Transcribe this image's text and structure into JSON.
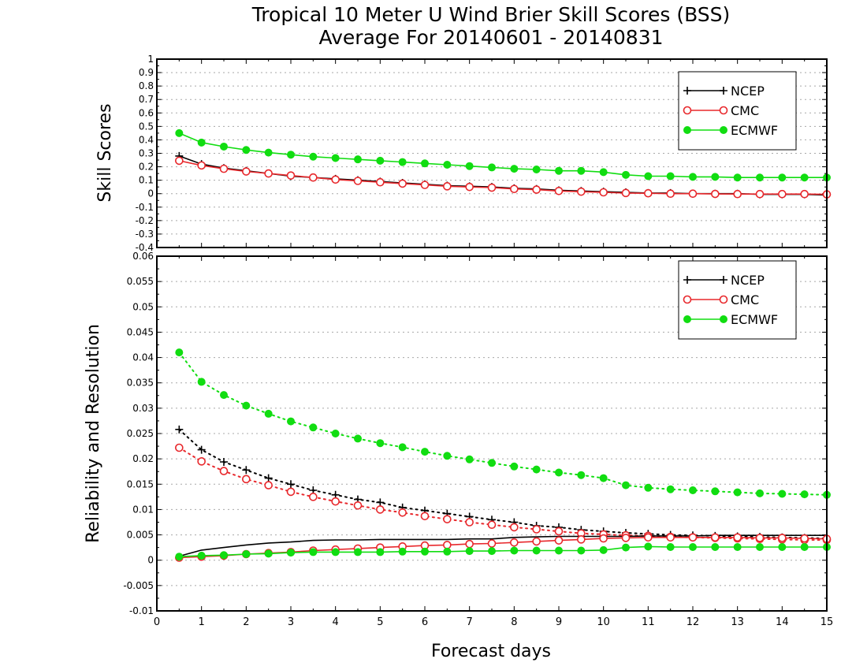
{
  "title_line1": "Tropical 10 Meter U Wind Brier Skill Scores (BSS)",
  "title_line2": "Average For 20140601 - 20140831",
  "xlabel": "Forecast days",
  "chart_data": [
    {
      "type": "line",
      "ylabel": "Skill Scores",
      "ylim": [
        -0.4,
        1
      ],
      "yticks": [
        "1",
        "0.9",
        "0.8",
        "0.7",
        "0.6",
        "0.5",
        "0.4",
        "0.3",
        "0.2",
        "0.1",
        "0",
        "-0.1",
        "-0.2",
        "-0.3",
        "-0.4"
      ],
      "xlim": [
        0,
        15
      ],
      "xticks": [
        "0",
        "1",
        "2",
        "3",
        "4",
        "5",
        "6",
        "7",
        "8",
        "9",
        "10",
        "11",
        "12",
        "13",
        "14",
        "15"
      ],
      "grid": true,
      "legend_position": "top-right",
      "x": [
        0.5,
        1,
        1.5,
        2,
        2.5,
        3,
        3.5,
        4,
        4.5,
        5,
        5.5,
        6,
        6.5,
        7,
        7.5,
        8,
        8.5,
        9,
        9.5,
        10,
        10.5,
        11,
        11.5,
        12,
        12.5,
        13,
        13.5,
        14,
        14.5,
        15
      ],
      "series": [
        {
          "name": "NCEP",
          "color": "#000000",
          "marker": "plus",
          "values": [
            0.28,
            0.22,
            0.19,
            0.17,
            0.15,
            0.13,
            0.12,
            0.11,
            0.1,
            0.09,
            0.08,
            0.07,
            0.06,
            0.055,
            0.05,
            0.04,
            0.035,
            0.025,
            0.02,
            0.015,
            0.01,
            0.005,
            0.005,
            0.0,
            0.0,
            0.0,
            -0.005,
            -0.005,
            -0.005,
            -0.01
          ]
        },
        {
          "name": "CMC",
          "color": "#e8282c",
          "marker": "open-circle",
          "values": [
            0.245,
            0.21,
            0.185,
            0.165,
            0.15,
            0.135,
            0.12,
            0.105,
            0.095,
            0.085,
            0.075,
            0.065,
            0.055,
            0.05,
            0.045,
            0.035,
            0.03,
            0.02,
            0.015,
            0.01,
            0.005,
            0.003,
            0.0,
            0.0,
            -0.002,
            -0.003,
            -0.003,
            -0.003,
            -0.003,
            -0.005
          ]
        },
        {
          "name": "ECMWF",
          "color": "#11dd11",
          "marker": "filled-circle",
          "values": [
            0.45,
            0.38,
            0.35,
            0.325,
            0.305,
            0.29,
            0.275,
            0.265,
            0.255,
            0.245,
            0.235,
            0.225,
            0.215,
            0.205,
            0.195,
            0.185,
            0.18,
            0.17,
            0.17,
            0.16,
            0.14,
            0.13,
            0.13,
            0.125,
            0.125,
            0.12,
            0.12,
            0.12,
            0.12,
            0.12
          ]
        }
      ]
    },
    {
      "type": "line",
      "ylabel": "Reliability and Resolution",
      "ylim": [
        -0.01,
        0.06
      ],
      "yticks": [
        "0.06",
        "0.055",
        "0.05",
        "0.045",
        "0.04",
        "0.035",
        "0.03",
        "0.025",
        "0.02",
        "0.015",
        "0.01",
        "0.005",
        "0",
        "-0.005",
        "-0.01"
      ],
      "xlim": [
        0,
        15
      ],
      "xticks": [
        "0",
        "1",
        "2",
        "3",
        "4",
        "5",
        "6",
        "7",
        "8",
        "9",
        "10",
        "11",
        "12",
        "13",
        "14",
        "15"
      ],
      "grid": true,
      "legend_position": "top-right",
      "x": [
        0.5,
        1,
        1.5,
        2,
        2.5,
        3,
        3.5,
        4,
        4.5,
        5,
        5.5,
        6,
        6.5,
        7,
        7.5,
        8,
        8.5,
        9,
        9.5,
        10,
        10.5,
        11,
        11.5,
        12,
        12.5,
        13,
        13.5,
        14,
        14.5,
        15
      ],
      "series": [
        {
          "name": "NCEP",
          "color": "#000000",
          "marker": "plus",
          "line": "dotted",
          "values": [
            0.0258,
            0.0218,
            0.0194,
            0.0178,
            0.0162,
            0.015,
            0.0138,
            0.0129,
            0.012,
            0.0114,
            0.0104,
            0.0098,
            0.0092,
            0.0086,
            0.008,
            0.0075,
            0.0068,
            0.0065,
            0.006,
            0.0057,
            0.0054,
            0.0052,
            0.005,
            0.0049,
            0.0048,
            0.0047,
            0.0046,
            0.0045,
            0.0044,
            0.0043
          ]
        },
        {
          "name": "CMC",
          "color": "#e8282c",
          "marker": "open-circle",
          "line": "dotted",
          "values": [
            0.0222,
            0.0195,
            0.0176,
            0.016,
            0.0148,
            0.0135,
            0.0125,
            0.0116,
            0.0108,
            0.01,
            0.0094,
            0.0087,
            0.0081,
            0.0075,
            0.007,
            0.0065,
            0.0061,
            0.0057,
            0.0053,
            0.0051,
            0.0049,
            0.0048,
            0.0046,
            0.0045,
            0.0044,
            0.0043,
            0.0042,
            0.0041,
            0.004,
            0.004
          ]
        },
        {
          "name": "ECMWF",
          "color": "#11dd11",
          "marker": "filled-circle",
          "line": "dotted",
          "values": [
            0.041,
            0.0352,
            0.0326,
            0.0305,
            0.0289,
            0.0274,
            0.0262,
            0.025,
            0.024,
            0.0231,
            0.0223,
            0.0214,
            0.0206,
            0.0199,
            0.0192,
            0.0185,
            0.0179,
            0.0173,
            0.0168,
            0.0162,
            0.0148,
            0.0143,
            0.014,
            0.0138,
            0.0136,
            0.0134,
            0.0132,
            0.0131,
            0.013,
            0.0129
          ]
        },
        {
          "name": "NCEP",
          "color": "#000000",
          "marker": "none",
          "line": "solid",
          "values": [
            0.0008,
            0.002,
            0.0025,
            0.003,
            0.0034,
            0.0036,
            0.0039,
            0.004,
            0.004,
            0.0041,
            0.0041,
            0.0041,
            0.0041,
            0.0042,
            0.0042,
            0.0045,
            0.0046,
            0.0047,
            0.0047,
            0.0047,
            0.0047,
            0.0048,
            0.0048,
            0.0048,
            0.0049,
            0.0049,
            0.0049,
            0.0049,
            0.0049,
            0.0049
          ]
        },
        {
          "name": "CMC",
          "color": "#e8282c",
          "marker": "open-circle",
          "line": "solid",
          "values": [
            0.0005,
            0.0007,
            0.0009,
            0.0012,
            0.0014,
            0.0016,
            0.0019,
            0.0021,
            0.0023,
            0.0025,
            0.0027,
            0.0029,
            0.003,
            0.0032,
            0.0033,
            0.0035,
            0.0037,
            0.0039,
            0.0041,
            0.0043,
            0.0044,
            0.0045,
            0.0045,
            0.0045,
            0.0045,
            0.0045,
            0.0044,
            0.0044,
            0.0043,
            0.0042
          ]
        },
        {
          "name": "ECMWF",
          "color": "#11dd11",
          "marker": "filled-circle",
          "line": "solid",
          "values": [
            0.0007,
            0.0009,
            0.001,
            0.0012,
            0.0013,
            0.0015,
            0.0016,
            0.0016,
            0.0016,
            0.0016,
            0.0017,
            0.0017,
            0.0017,
            0.0018,
            0.0018,
            0.0019,
            0.0019,
            0.0019,
            0.0019,
            0.002,
            0.0025,
            0.0027,
            0.0026,
            0.0026,
            0.0026,
            0.0026,
            0.0026,
            0.0026,
            0.0026,
            0.0026
          ]
        }
      ]
    }
  ]
}
